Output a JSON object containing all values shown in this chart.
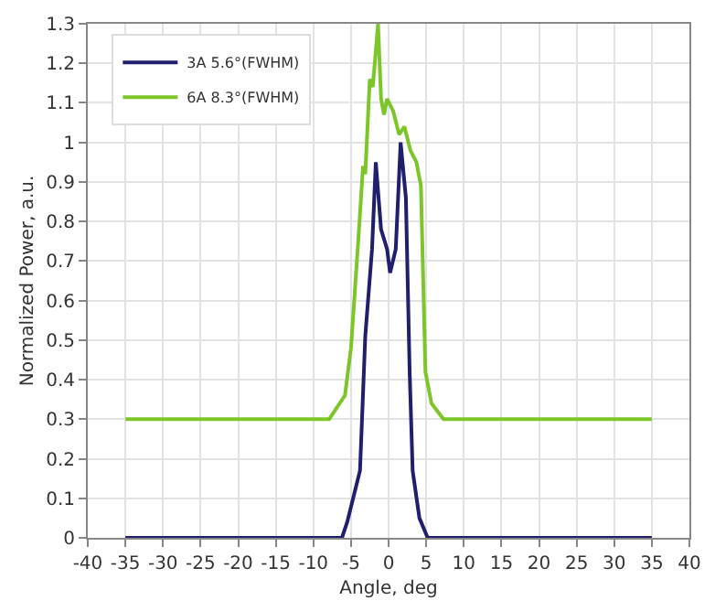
{
  "chart_data": {
    "type": "line",
    "xlabel": "Angle, deg",
    "ylabel": "Normalized Power, a.u.",
    "xlim": [
      -40,
      40
    ],
    "xticks": [
      -40,
      -35,
      -30,
      -25,
      -20,
      -15,
      -10,
      -5,
      0,
      5,
      10,
      15,
      20,
      25,
      30,
      35,
      40
    ],
    "ylim": [
      0,
      1.3
    ],
    "yticks": [
      0,
      0.1,
      0.2,
      0.3,
      0.4,
      0.5,
      0.6,
      0.7,
      0.8,
      0.9,
      1,
      1.1,
      1.2,
      1.3
    ],
    "grid": true,
    "legend": "top left",
    "marker": "none",
    "line_style": "solid",
    "series": [
      {
        "name": "3A 5.6°(FWHM)",
        "color": "#1f1f6e",
        "x": [
          -35,
          -6.2,
          -5.5,
          -3.8,
          -3.1,
          -2.2,
          -1.7,
          -1.0,
          -0.2,
          0.2,
          0.95,
          1.6,
          2.3,
          2.8,
          3.2,
          4.1,
          5.2,
          35
        ],
        "values": [
          0,
          0,
          0.04,
          0.17,
          0.51,
          0.73,
          0.95,
          0.78,
          0.73,
          0.67,
          0.73,
          1.0,
          0.86,
          0.42,
          0.17,
          0.05,
          0,
          0
        ]
      },
      {
        "name": "6A 8.3°(FWHM)",
        "color": "#7dc62a",
        "x": [
          -35,
          -7.9,
          -5.8,
          -5.0,
          -4.0,
          -3.4,
          -3.1,
          -2.5,
          -2.1,
          -1.4,
          -1.0,
          -0.6,
          -0.2,
          0.6,
          1.4,
          2.1,
          2.9,
          3.7,
          4.3,
          4.9,
          5.7,
          7.3,
          35
        ],
        "values": [
          0.3,
          0.3,
          0.36,
          0.48,
          0.76,
          0.94,
          0.92,
          1.16,
          1.14,
          1.3,
          1.11,
          1.07,
          1.11,
          1.08,
          1.02,
          1.04,
          0.98,
          0.95,
          0.89,
          0.42,
          0.34,
          0.3,
          0.3
        ]
      }
    ]
  }
}
